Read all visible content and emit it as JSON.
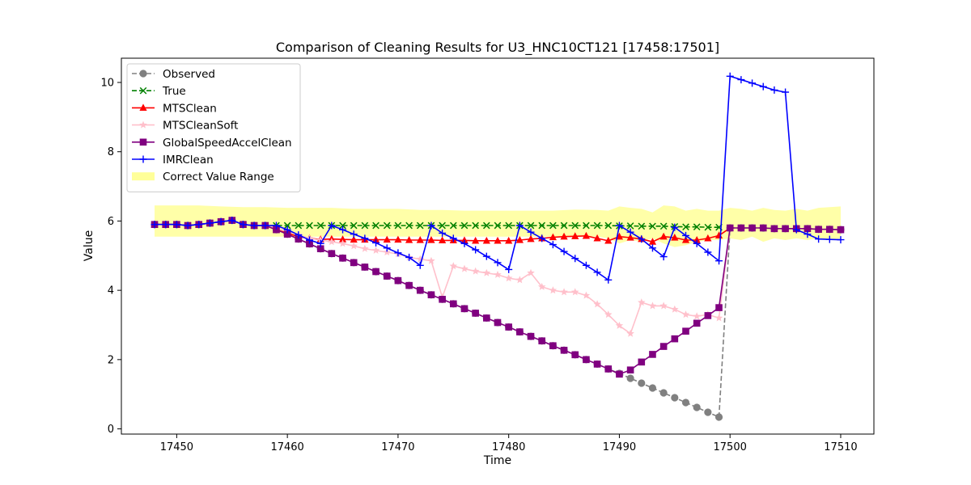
{
  "chart_data": {
    "type": "line",
    "title": "Comparison of Cleaning Results for U3_HNC10CT121 [17458:17501]",
    "xlabel": "Time",
    "ylabel": "Value",
    "xlim": [
      17445,
      17513
    ],
    "ylim": [
      -0.15,
      10.7
    ],
    "xticks": [
      17450,
      17460,
      17470,
      17480,
      17490,
      17500,
      17510
    ],
    "yticks": [
      0,
      2,
      4,
      6,
      8,
      10
    ],
    "grid": false,
    "legend_position": "top-left",
    "band": {
      "name": "Correct Value Range",
      "color": "#ffff99",
      "x": [
        17448,
        17450,
        17452,
        17454,
        17456,
        17458,
        17460,
        17462,
        17464,
        17466,
        17468,
        17470,
        17472,
        17474,
        17476,
        17478,
        17480,
        17482,
        17484,
        17486,
        17488,
        17489,
        17490,
        17491,
        17492,
        17493,
        17494,
        17495,
        17496,
        17497,
        17498,
        17499,
        17500,
        17501,
        17502,
        17503,
        17504,
        17505,
        17506,
        17507,
        17508,
        17509,
        17510
      ],
      "lower": [
        5.55,
        5.55,
        5.55,
        5.55,
        5.55,
        5.55,
        5.55,
        5.55,
        5.55,
        5.55,
        5.55,
        5.55,
        5.55,
        5.55,
        5.55,
        5.55,
        5.55,
        5.55,
        5.55,
        5.55,
        5.55,
        5.5,
        5.35,
        5.45,
        5.4,
        5.5,
        5.35,
        5.25,
        5.3,
        5.4,
        5.45,
        5.45,
        5.5,
        5.45,
        5.55,
        5.4,
        5.5,
        5.45,
        5.5,
        5.45,
        5.5,
        5.45,
        5.5
      ],
      "upper": [
        6.45,
        6.45,
        6.45,
        6.42,
        6.4,
        6.4,
        6.38,
        6.38,
        6.38,
        6.35,
        6.35,
        6.35,
        6.32,
        6.32,
        6.3,
        6.3,
        6.3,
        6.3,
        6.3,
        6.33,
        6.32,
        6.3,
        6.42,
        6.38,
        6.35,
        6.25,
        6.45,
        6.42,
        6.3,
        6.35,
        6.3,
        6.3,
        6.38,
        6.35,
        6.3,
        6.38,
        6.32,
        6.3,
        6.35,
        6.3,
        6.38,
        6.4,
        6.42
      ]
    },
    "series": [
      {
        "name": "Observed",
        "color": "#808080",
        "marker": "circle",
        "dashed": true,
        "x": [
          17448,
          17449,
          17450,
          17451,
          17452,
          17453,
          17454,
          17455,
          17456,
          17457,
          17458,
          17459,
          17460,
          17461,
          17462,
          17463,
          17464,
          17465,
          17466,
          17467,
          17468,
          17469,
          17470,
          17471,
          17472,
          17473,
          17474,
          17475,
          17476,
          17477,
          17478,
          17479,
          17480,
          17481,
          17482,
          17483,
          17484,
          17485,
          17486,
          17487,
          17488,
          17489,
          17490,
          17491,
          17492,
          17493,
          17494,
          17495,
          17496,
          17497,
          17498,
          17499,
          17500,
          17501,
          17502,
          17503,
          17504,
          17505,
          17506,
          17507,
          17508,
          17509,
          17510
        ],
        "y": [
          5.9,
          5.9,
          5.9,
          5.87,
          5.9,
          5.94,
          5.98,
          6.02,
          5.9,
          5.87,
          5.87,
          5.75,
          5.62,
          5.48,
          5.34,
          5.2,
          5.06,
          4.93,
          4.8,
          4.67,
          4.54,
          4.41,
          4.28,
          4.14,
          4.0,
          3.87,
          3.74,
          3.61,
          3.47,
          3.34,
          3.2,
          3.07,
          2.94,
          2.8,
          2.67,
          2.54,
          2.4,
          2.27,
          2.14,
          2.0,
          1.87,
          1.73,
          1.6,
          1.46,
          1.32,
          1.18,
          1.04,
          0.9,
          0.76,
          0.62,
          0.48,
          0.34,
          5.8,
          5.8,
          5.8,
          5.8,
          5.78,
          5.78,
          5.78,
          5.78,
          5.76,
          5.76,
          5.75
        ]
      },
      {
        "name": "True",
        "color": "#008000",
        "marker": "x",
        "dashed": true,
        "x": [
          17448,
          17449,
          17450,
          17451,
          17452,
          17453,
          17454,
          17455,
          17456,
          17457,
          17458,
          17459,
          17460,
          17461,
          17462,
          17463,
          17464,
          17465,
          17466,
          17467,
          17468,
          17469,
          17470,
          17471,
          17472,
          17473,
          17474,
          17475,
          17476,
          17477,
          17478,
          17479,
          17480,
          17481,
          17482,
          17483,
          17484,
          17485,
          17486,
          17487,
          17488,
          17489,
          17490,
          17491,
          17492,
          17493,
          17494,
          17495,
          17496,
          17497,
          17498,
          17499
        ],
        "y": [
          5.9,
          5.9,
          5.9,
          5.87,
          5.9,
          5.94,
          5.98,
          6.02,
          5.9,
          5.87,
          5.87,
          5.87,
          5.87,
          5.87,
          5.87,
          5.87,
          5.87,
          5.87,
          5.87,
          5.87,
          5.87,
          5.87,
          5.87,
          5.87,
          5.87,
          5.87,
          5.87,
          5.87,
          5.87,
          5.87,
          5.87,
          5.87,
          5.87,
          5.87,
          5.87,
          5.87,
          5.87,
          5.87,
          5.87,
          5.87,
          5.87,
          5.87,
          5.86,
          5.86,
          5.85,
          5.85,
          5.85,
          5.84,
          5.83,
          5.83,
          5.82,
          5.82
        ]
      },
      {
        "name": "MTSClean",
        "color": "#ff0000",
        "marker": "triangle",
        "dashed": false,
        "x": [
          17448,
          17449,
          17450,
          17451,
          17452,
          17453,
          17454,
          17455,
          17456,
          17457,
          17458,
          17459,
          17460,
          17461,
          17462,
          17463,
          17464,
          17465,
          17466,
          17467,
          17468,
          17469,
          17470,
          17471,
          17472,
          17473,
          17474,
          17475,
          17476,
          17477,
          17478,
          17479,
          17480,
          17481,
          17482,
          17483,
          17484,
          17485,
          17486,
          17487,
          17488,
          17489,
          17490,
          17491,
          17492,
          17493,
          17494,
          17495,
          17496,
          17497,
          17498,
          17499,
          17500
        ],
        "y": [
          5.9,
          5.9,
          5.9,
          5.87,
          5.9,
          5.94,
          5.98,
          6.02,
          5.9,
          5.87,
          5.87,
          5.75,
          5.65,
          5.55,
          5.5,
          5.47,
          5.48,
          5.47,
          5.46,
          5.46,
          5.46,
          5.46,
          5.46,
          5.45,
          5.45,
          5.45,
          5.44,
          5.44,
          5.44,
          5.43,
          5.43,
          5.43,
          5.43,
          5.45,
          5.48,
          5.5,
          5.53,
          5.55,
          5.56,
          5.57,
          5.5,
          5.43,
          5.55,
          5.52,
          5.48,
          5.4,
          5.55,
          5.52,
          5.45,
          5.45,
          5.5,
          5.58,
          5.8
        ]
      },
      {
        "name": "MTSCleanSoft",
        "color": "#ffc0cb",
        "marker": "star",
        "dashed": false,
        "x": [
          17448,
          17449,
          17450,
          17451,
          17452,
          17453,
          17454,
          17455,
          17456,
          17457,
          17458,
          17459,
          17460,
          17461,
          17462,
          17463,
          17464,
          17465,
          17466,
          17467,
          17468,
          17469,
          17470,
          17471,
          17472,
          17473,
          17474,
          17475,
          17476,
          17477,
          17478,
          17479,
          17480,
          17481,
          17482,
          17483,
          17484,
          17485,
          17486,
          17487,
          17488,
          17489,
          17490,
          17491,
          17492,
          17493,
          17494,
          17495,
          17496,
          17497,
          17498,
          17499,
          17500
        ],
        "y": [
          5.9,
          5.9,
          5.9,
          5.87,
          5.9,
          5.94,
          5.98,
          6.02,
          5.9,
          5.87,
          5.87,
          5.8,
          5.7,
          5.6,
          5.5,
          5.45,
          5.4,
          5.35,
          5.28,
          5.2,
          5.15,
          5.1,
          5.05,
          4.95,
          4.9,
          4.85,
          3.8,
          4.7,
          4.62,
          4.55,
          4.5,
          4.45,
          4.35,
          4.3,
          4.5,
          4.1,
          4.0,
          3.95,
          3.95,
          3.85,
          3.6,
          3.3,
          2.98,
          2.75,
          3.65,
          3.55,
          3.55,
          3.45,
          3.3,
          3.25,
          3.3,
          3.2,
          5.8
        ]
      },
      {
        "name": "GlobalSpeedAccelClean",
        "color": "#800080",
        "marker": "square",
        "dashed": false,
        "x": [
          17448,
          17449,
          17450,
          17451,
          17452,
          17453,
          17454,
          17455,
          17456,
          17457,
          17458,
          17459,
          17460,
          17461,
          17462,
          17463,
          17464,
          17465,
          17466,
          17467,
          17468,
          17469,
          17470,
          17471,
          17472,
          17473,
          17474,
          17475,
          17476,
          17477,
          17478,
          17479,
          17480,
          17481,
          17482,
          17483,
          17484,
          17485,
          17486,
          17487,
          17488,
          17489,
          17490,
          17491,
          17492,
          17493,
          17494,
          17495,
          17496,
          17497,
          17498,
          17499,
          17500,
          17501,
          17502,
          17503,
          17504,
          17505,
          17506,
          17507,
          17508,
          17509,
          17510
        ],
        "y": [
          5.9,
          5.9,
          5.9,
          5.87,
          5.9,
          5.94,
          5.98,
          6.02,
          5.9,
          5.87,
          5.87,
          5.75,
          5.62,
          5.48,
          5.34,
          5.2,
          5.06,
          4.93,
          4.8,
          4.67,
          4.54,
          4.41,
          4.28,
          4.14,
          4.0,
          3.87,
          3.74,
          3.61,
          3.47,
          3.34,
          3.2,
          3.07,
          2.94,
          2.8,
          2.67,
          2.54,
          2.4,
          2.27,
          2.14,
          2.0,
          1.87,
          1.73,
          1.58,
          1.7,
          1.93,
          2.15,
          2.38,
          2.6,
          2.82,
          3.05,
          3.27,
          3.5,
          5.8,
          5.8,
          5.8,
          5.8,
          5.78,
          5.78,
          5.78,
          5.78,
          5.76,
          5.76,
          5.75
        ]
      },
      {
        "name": "IMRClean",
        "color": "#0000ff",
        "marker": "plus",
        "dashed": false,
        "x": [
          17448,
          17449,
          17450,
          17451,
          17452,
          17453,
          17454,
          17455,
          17456,
          17457,
          17458,
          17459,
          17460,
          17461,
          17462,
          17463,
          17464,
          17465,
          17466,
          17467,
          17468,
          17469,
          17470,
          17471,
          17472,
          17473,
          17474,
          17475,
          17476,
          17477,
          17478,
          17479,
          17480,
          17481,
          17482,
          17483,
          17484,
          17485,
          17486,
          17487,
          17488,
          17489,
          17490,
          17491,
          17492,
          17493,
          17494,
          17495,
          17496,
          17497,
          17498,
          17499,
          17500,
          17501,
          17502,
          17503,
          17504,
          17505,
          17506,
          17507,
          17508,
          17509,
          17510
        ],
        "y": [
          5.9,
          5.9,
          5.9,
          5.87,
          5.9,
          5.94,
          5.98,
          6.02,
          5.9,
          5.87,
          5.87,
          5.87,
          5.75,
          5.6,
          5.45,
          5.35,
          5.87,
          5.75,
          5.62,
          5.5,
          5.37,
          5.22,
          5.08,
          4.95,
          4.72,
          5.87,
          5.65,
          5.5,
          5.35,
          5.17,
          4.98,
          4.8,
          4.6,
          5.87,
          5.68,
          5.5,
          5.32,
          5.12,
          4.92,
          4.72,
          4.52,
          4.3,
          5.87,
          5.68,
          5.48,
          5.22,
          4.97,
          5.82,
          5.58,
          5.35,
          5.1,
          4.85,
          10.18,
          10.08,
          9.98,
          9.88,
          9.78,
          9.72,
          5.75,
          5.62,
          5.48,
          5.47,
          5.46
        ]
      }
    ]
  }
}
